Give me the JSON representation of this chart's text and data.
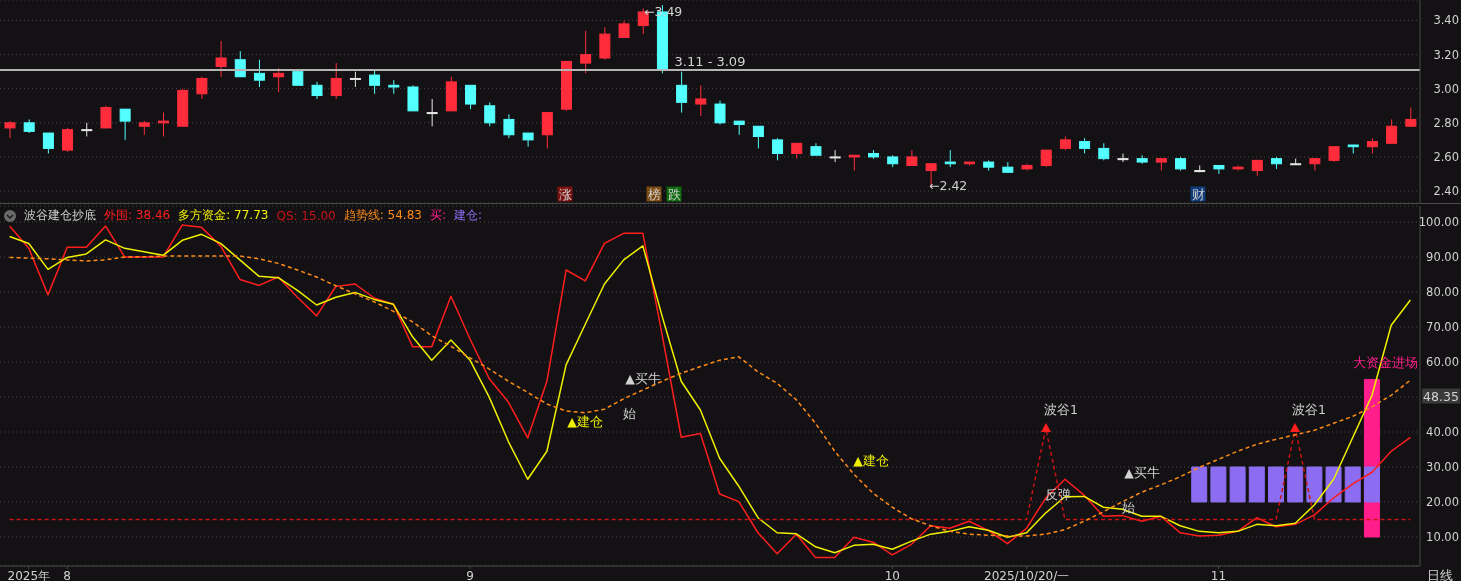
{
  "chart_data": [
    {
      "type": "candlestick",
      "categories": [
        null,
        null,
        null,
        null,
        null,
        null,
        null,
        null,
        null,
        null,
        null,
        null,
        null,
        null,
        null,
        null,
        null,
        null,
        null,
        null,
        null,
        null,
        null,
        null,
        null,
        null,
        null,
        null,
        null,
        null,
        null,
        null,
        null,
        null,
        null,
        null,
        null,
        null,
        null,
        null,
        null,
        null,
        null,
        null,
        null,
        null,
        null,
        null,
        null,
        null,
        null,
        null,
        null,
        null,
        null,
        null,
        null,
        null,
        null,
        null,
        null,
        null,
        null,
        null,
        null,
        null,
        null,
        null,
        null,
        null,
        null,
        null,
        null,
        null
      ],
      "ohlc": [
        [
          2.77,
          2.81,
          2.71,
          2.8
        ],
        [
          2.8,
          2.82,
          2.74,
          2.75
        ],
        [
          2.74,
          2.74,
          2.62,
          2.65
        ],
        [
          2.64,
          2.77,
          2.63,
          2.76
        ],
        [
          2.76,
          2.8,
          2.72,
          2.76
        ],
        [
          2.77,
          2.9,
          2.77,
          2.89
        ],
        [
          2.88,
          2.88,
          2.7,
          2.81
        ],
        [
          2.78,
          2.81,
          2.73,
          2.8
        ],
        [
          2.8,
          2.86,
          2.72,
          2.81
        ],
        [
          2.78,
          3.0,
          2.78,
          2.99
        ],
        [
          2.97,
          3.07,
          2.94,
          3.06
        ],
        [
          3.13,
          3.28,
          3.07,
          3.18
        ],
        [
          3.17,
          3.22,
          3.07,
          3.07
        ],
        [
          3.09,
          3.17,
          3.01,
          3.05
        ],
        [
          3.07,
          3.12,
          2.98,
          3.09
        ],
        [
          3.1,
          3.11,
          3.02,
          3.02
        ],
        [
          3.02,
          3.04,
          2.94,
          2.96
        ],
        [
          2.96,
          3.15,
          2.94,
          3.06
        ],
        [
          3.06,
          3.1,
          3.01,
          3.06
        ],
        [
          3.08,
          3.11,
          2.97,
          3.02
        ],
        [
          3.02,
          3.05,
          2.97,
          3.01
        ],
        [
          3.01,
          3.02,
          2.87,
          2.87
        ],
        [
          2.86,
          2.94,
          2.78,
          2.86
        ],
        [
          2.87,
          3.07,
          2.87,
          3.04
        ],
        [
          3.02,
          3.02,
          2.88,
          2.91
        ],
        [
          2.9,
          2.92,
          2.78,
          2.8
        ],
        [
          2.82,
          2.85,
          2.71,
          2.73
        ],
        [
          2.74,
          2.74,
          2.66,
          2.7
        ],
        [
          2.73,
          2.86,
          2.65,
          2.86
        ],
        [
          2.88,
          3.16,
          2.87,
          3.16
        ],
        [
          3.15,
          3.34,
          3.09,
          3.2
        ],
        [
          3.18,
          3.36,
          3.17,
          3.32
        ],
        [
          3.3,
          3.4,
          3.3,
          3.38
        ],
        [
          3.37,
          3.47,
          3.32,
          3.45
        ],
        [
          3.45,
          3.49,
          3.09,
          3.11
        ],
        [
          3.02,
          3.1,
          2.86,
          2.92
        ],
        [
          2.91,
          3.02,
          2.84,
          2.94
        ],
        [
          2.91,
          2.93,
          2.79,
          2.8
        ],
        [
          2.81,
          2.81,
          2.73,
          2.79
        ],
        [
          2.78,
          2.78,
          2.65,
          2.72
        ],
        [
          2.7,
          2.71,
          2.58,
          2.62
        ],
        [
          2.62,
          2.68,
          2.59,
          2.68
        ],
        [
          2.66,
          2.68,
          2.61,
          2.61
        ],
        [
          2.6,
          2.64,
          2.57,
          2.6
        ],
        [
          2.6,
          2.61,
          2.52,
          2.61
        ],
        [
          2.62,
          2.64,
          2.59,
          2.6
        ],
        [
          2.6,
          2.61,
          2.54,
          2.56
        ],
        [
          2.55,
          2.64,
          2.55,
          2.6
        ],
        [
          2.52,
          2.56,
          2.42,
          2.56
        ],
        [
          2.57,
          2.64,
          2.54,
          2.56
        ],
        [
          2.56,
          2.57,
          2.55,
          2.57
        ],
        [
          2.57,
          2.58,
          2.52,
          2.54
        ],
        [
          2.54,
          2.57,
          2.51,
          2.51
        ],
        [
          2.53,
          2.56,
          2.52,
          2.55
        ],
        [
          2.55,
          2.64,
          2.54,
          2.64
        ],
        [
          2.65,
          2.72,
          2.64,
          2.7
        ],
        [
          2.69,
          2.71,
          2.62,
          2.65
        ],
        [
          2.65,
          2.68,
          2.58,
          2.59
        ],
        [
          2.59,
          2.62,
          2.57,
          2.59
        ],
        [
          2.59,
          2.61,
          2.56,
          2.57
        ],
        [
          2.57,
          2.59,
          2.52,
          2.59
        ],
        [
          2.59,
          2.6,
          2.52,
          2.53
        ],
        [
          2.52,
          2.55,
          2.51,
          2.52
        ],
        [
          2.55,
          2.55,
          2.5,
          2.53
        ],
        [
          2.53,
          2.55,
          2.52,
          2.54
        ],
        [
          2.52,
          2.58,
          2.49,
          2.58
        ],
        [
          2.59,
          2.6,
          2.53,
          2.56
        ],
        [
          2.56,
          2.59,
          2.56,
          2.56
        ],
        [
          2.56,
          2.59,
          2.52,
          2.59
        ],
        [
          2.58,
          2.66,
          2.57,
          2.66
        ],
        [
          2.67,
          2.67,
          2.62,
          2.66
        ],
        [
          2.66,
          2.71,
          2.62,
          2.69
        ],
        [
          2.68,
          2.82,
          2.68,
          2.78
        ],
        [
          2.78,
          2.89,
          2.78,
          2.82
        ]
      ],
      "ylim": [
        2.33,
        3.52
      ],
      "yticks": [
        {
          "value": 2.4,
          "label": "2.40"
        },
        {
          "value": 2.6,
          "label": "2.60"
        },
        {
          "value": 2.8,
          "label": "2.80"
        },
        {
          "value": 3.0,
          "label": "3.00"
        },
        {
          "value": 3.2,
          "label": "3.20"
        },
        {
          "value": 3.4,
          "label": "3.40"
        }
      ],
      "grid": "y",
      "tick_labels": "y",
      "ref_lines": [
        {
          "axis": "y",
          "value": 3.11,
          "label": "3.11 - 3.09",
          "color": "#b4b4b4"
        }
      ],
      "annotations": [
        "←3.49",
        "←2.42",
        "涨",
        "榜",
        "跌",
        "财"
      ]
    },
    {
      "type": "line",
      "title": "波谷建仓抄底",
      "categories": [
        null,
        "2025年",
        null,
        "8",
        null,
        null,
        null,
        null,
        null,
        null,
        null,
        null,
        null,
        null,
        null,
        null,
        null,
        null,
        null,
        null,
        null,
        null,
        null,
        null,
        "9",
        null,
        null,
        null,
        null,
        null,
        null,
        null,
        null,
        null,
        null,
        null,
        null,
        null,
        null,
        null,
        null,
        null,
        null,
        null,
        null,
        null,
        "10",
        null,
        null,
        null,
        null,
        null,
        null,
        "2025/10/20/一",
        null,
        null,
        null,
        null,
        null,
        null,
        null,
        null,
        null,
        "11",
        null,
        null,
        null,
        null,
        null,
        null,
        null,
        null,
        null,
        null
      ],
      "series": [
        {
          "name": "外围: 38.46",
          "color": "#ff1e1e",
          "values": [
            98.9,
            92.5,
            79.2,
            92.8,
            92.8,
            98.9,
            90,
            90,
            90,
            99.2,
            98.5,
            93.2,
            83.6,
            81.9,
            84.3,
            78.5,
            73.2,
            81.6,
            82.3,
            78.3,
            76.5,
            64.4,
            64.4,
            78.8,
            66.5,
            55.2,
            48.5,
            38.3,
            54.5,
            86.3,
            83.2,
            93.9,
            96.8,
            96.8,
            67.9,
            38.5,
            39.6,
            22.3,
            20.1,
            11.2,
            5.2,
            10.8,
            4.1,
            4.1,
            9.9,
            8.5,
            4.9,
            7.9,
            13.2,
            12.5,
            14.5,
            11.9,
            8.1,
            12.5,
            21.2,
            26.5,
            21.9,
            15.9,
            16.1,
            14.5,
            15.9,
            11.2,
            10.3,
            10.5,
            11.6,
            15.5,
            12.9,
            13.6,
            16.3,
            21.2,
            25.2,
            28.5,
            34.5,
            38.46
          ]
        },
        {
          "name": "多方资金: 77.73",
          "color": "#f0f000",
          "values": [
            95.9,
            93.9,
            86.5,
            89.9,
            90.9,
            94.9,
            92.5,
            91.5,
            90.5,
            94.8,
            96.5,
            93.9,
            89.2,
            84.5,
            84.1,
            80.5,
            76.3,
            78.5,
            79.9,
            77.9,
            76.5,
            67.2,
            60.5,
            66.3,
            60.5,
            49.9,
            37.2,
            26.5,
            34.5,
            59.2,
            70.8,
            82.3,
            89.2,
            93.2,
            73.2,
            54.5,
            46.3,
            32.5,
            24.5,
            15.5,
            11.2,
            10.9,
            7.2,
            5.5,
            7.6,
            7.9,
            6.5,
            8.8,
            10.8,
            11.6,
            12.9,
            11.9,
            9.9,
            11.2,
            16.9,
            21.5,
            21.6,
            18.5,
            17.9,
            15.9,
            15.9,
            13.2,
            11.6,
            11.2,
            11.6,
            13.6,
            13.2,
            13.9,
            19.2,
            26.5,
            38.5,
            50.5,
            70.5,
            77.73
          ]
        },
        {
          "name": "QS: 15.00",
          "color": "#c81414",
          "line_style": "dashed",
          "values": [
            15,
            15,
            15,
            15,
            15,
            15,
            15,
            15,
            15,
            15,
            15,
            15,
            15,
            15,
            15,
            15,
            15,
            15,
            15,
            15,
            15,
            15,
            15,
            15,
            15,
            15,
            15,
            15,
            15,
            15,
            15,
            15,
            15,
            15,
            15,
            15,
            15,
            15,
            15,
            15,
            15,
            15,
            15,
            15,
            15,
            15,
            15,
            15,
            15,
            15,
            15,
            15,
            15,
            15,
            41,
            15,
            15,
            15,
            15,
            15,
            15,
            15,
            15,
            15,
            15,
            15,
            15,
            41,
            15,
            15,
            15,
            15,
            15,
            15
          ]
        },
        {
          "name": "趋势线: 54.83",
          "color": "#ff8c1a",
          "line_style": "dashed",
          "values": [
            89.9,
            89.7,
            89.5,
            89.2,
            88.9,
            89.2,
            90,
            90.1,
            90.3,
            90.3,
            90.3,
            90.3,
            90.3,
            89.5,
            88.2,
            86.3,
            84.3,
            81.8,
            79.5,
            77.2,
            74.5,
            71.5,
            67.5,
            64.5,
            61.2,
            58,
            54.5,
            51.3,
            48,
            46,
            45.5,
            46.5,
            49.5,
            52,
            54.5,
            56.8,
            58.7,
            60.5,
            61.5,
            57.2,
            53.9,
            49.2,
            42.5,
            34.5,
            27.9,
            22.5,
            18.5,
            15.2,
            13.2,
            11.6,
            10.8,
            10.5,
            10.3,
            10.3,
            10.8,
            12.1,
            14.5,
            17.2,
            20.1,
            22.8,
            24.9,
            27.2,
            29.9,
            32.2,
            34.5,
            36.5,
            37.9,
            39.2,
            40.5,
            42.5,
            44.5,
            47.2,
            50.5,
            54.83
          ]
        },
        {
          "name": "买:",
          "type": "bar",
          "color": "#ff1e8c",
          "values": [
            null,
            null,
            null,
            null,
            null,
            null,
            null,
            null,
            null,
            null,
            null,
            null,
            null,
            null,
            null,
            null,
            null,
            null,
            null,
            null,
            null,
            null,
            null,
            null,
            null,
            null,
            null,
            null,
            null,
            null,
            null,
            null,
            null,
            null,
            null,
            null,
            null,
            null,
            null,
            null,
            null,
            null,
            null,
            null,
            null,
            null,
            null,
            null,
            null,
            null,
            null,
            null,
            null,
            null,
            null,
            null,
            null,
            null,
            null,
            null,
            null,
            null,
            null,
            null,
            null,
            null,
            null,
            null,
            null,
            null,
            null,
            45,
            null,
            null
          ],
          "base": [
            null,
            null,
            null,
            null,
            null,
            null,
            null,
            null,
            null,
            null,
            null,
            null,
            null,
            null,
            null,
            null,
            null,
            null,
            null,
            null,
            null,
            null,
            null,
            null,
            null,
            null,
            null,
            null,
            null,
            null,
            null,
            null,
            null,
            null,
            null,
            null,
            null,
            null,
            null,
            null,
            null,
            null,
            null,
            null,
            null,
            null,
            null,
            null,
            null,
            null,
            null,
            null,
            null,
            null,
            null,
            null,
            null,
            null,
            null,
            null,
            null,
            null,
            null,
            null,
            null,
            null,
            null,
            null,
            null,
            null,
            null,
            10,
            null,
            null
          ]
        },
        {
          "name": "建仓:",
          "type": "bar",
          "color": "#8c6cf0",
          "values": [
            null,
            null,
            null,
            null,
            null,
            null,
            null,
            null,
            null,
            null,
            null,
            null,
            null,
            null,
            null,
            null,
            null,
            null,
            null,
            null,
            null,
            null,
            null,
            null,
            null,
            null,
            null,
            null,
            null,
            null,
            null,
            null,
            null,
            null,
            null,
            null,
            null,
            null,
            null,
            null,
            null,
            null,
            null,
            null,
            null,
            null,
            null,
            null,
            null,
            null,
            null,
            null,
            null,
            null,
            null,
            null,
            null,
            null,
            null,
            null,
            null,
            null,
            10,
            10,
            10,
            10,
            10,
            10,
            10,
            10,
            10,
            10,
            null,
            null
          ],
          "base": [
            null,
            null,
            null,
            null,
            null,
            null,
            null,
            null,
            null,
            null,
            null,
            null,
            null,
            null,
            null,
            null,
            null,
            null,
            null,
            null,
            null,
            null,
            null,
            null,
            null,
            null,
            null,
            null,
            null,
            null,
            null,
            null,
            null,
            null,
            null,
            null,
            null,
            null,
            null,
            null,
            null,
            null,
            null,
            null,
            null,
            null,
            null,
            null,
            null,
            null,
            null,
            null,
            null,
            null,
            null,
            null,
            null,
            null,
            null,
            null,
            null,
            null,
            20,
            20,
            20,
            20,
            20,
            20,
            20,
            20,
            20,
            20,
            null,
            null
          ]
        }
      ],
      "ylim": [
        1.7,
        104.6
      ],
      "yticks": [
        {
          "value": 10,
          "label": "10.00"
        },
        {
          "value": 20,
          "label": "20.00"
        },
        {
          "value": 30,
          "label": "30.00"
        },
        {
          "value": 40,
          "label": "40.00"
        },
        {
          "value": 50,
          "label": null
        },
        {
          "value": 60,
          "label": "60.00"
        },
        {
          "value": 70,
          "label": "70.00"
        },
        {
          "value": 80,
          "label": "80.00"
        },
        {
          "value": 90,
          "label": "90.00"
        },
        {
          "value": 100,
          "label": "100.00"
        }
      ],
      "grid": "y",
      "legend": "top left",
      "marker": "none",
      "annotations": [
        "▲建仓",
        "▲买牛",
        "始",
        "▲建仓",
        "▲买牛",
        "始",
        "反弹",
        "波谷1",
        "波谷1",
        "大资金进场",
        "48.35",
        "日线"
      ]
    }
  ]
}
